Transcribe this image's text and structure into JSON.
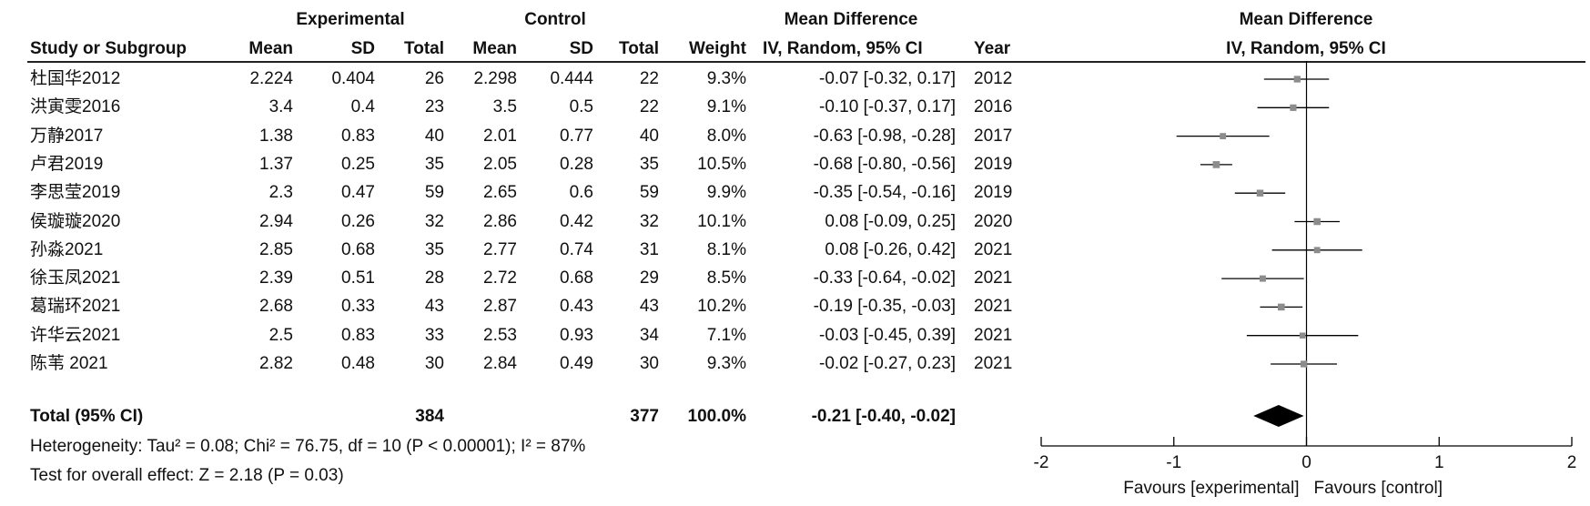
{
  "headers": {
    "group_experimental": "Experimental",
    "group_control": "Control",
    "group_md": "Mean Difference",
    "study": "Study or Subgroup",
    "mean": "Mean",
    "sd": "SD",
    "total": "Total",
    "weight": "Weight",
    "ci_method": "IV, Random, 95% CI",
    "year": "Year",
    "plot_title": "Mean Difference",
    "plot_subtitle": "IV, Random, 95% CI"
  },
  "studies": [
    {
      "name": "杜国华2012",
      "e_mean": "2.224",
      "e_sd": "0.404",
      "e_total": "26",
      "c_mean": "2.298",
      "c_sd": "0.444",
      "c_total": "22",
      "weight": "9.3%",
      "ci": "-0.07 [-0.32, 0.17]",
      "year": "2012"
    },
    {
      "name": "洪寅雯2016",
      "e_mean": "3.4",
      "e_sd": "0.4",
      "e_total": "23",
      "c_mean": "3.5",
      "c_sd": "0.5",
      "c_total": "22",
      "weight": "9.1%",
      "ci": "-0.10 [-0.37, 0.17]",
      "year": "2016"
    },
    {
      "name": "万静2017",
      "e_mean": "1.38",
      "e_sd": "0.83",
      "e_total": "40",
      "c_mean": "2.01",
      "c_sd": "0.77",
      "c_total": "40",
      "weight": "8.0%",
      "ci": "-0.63 [-0.98, -0.28]",
      "year": "2017"
    },
    {
      "name": "卢君2019",
      "e_mean": "1.37",
      "e_sd": "0.25",
      "e_total": "35",
      "c_mean": "2.05",
      "c_sd": "0.28",
      "c_total": "35",
      "weight": "10.5%",
      "ci": "-0.68 [-0.80, -0.56]",
      "year": "2019"
    },
    {
      "name": "李思莹2019",
      "e_mean": "2.3",
      "e_sd": "0.47",
      "e_total": "59",
      "c_mean": "2.65",
      "c_sd": "0.6",
      "c_total": "59",
      "weight": "9.9%",
      "ci": "-0.35 [-0.54, -0.16]",
      "year": "2019"
    },
    {
      "name": "侯璇璇2020",
      "e_mean": "2.94",
      "e_sd": "0.26",
      "e_total": "32",
      "c_mean": "2.86",
      "c_sd": "0.42",
      "c_total": "32",
      "weight": "10.1%",
      "ci": "0.08 [-0.09, 0.25]",
      "year": "2020"
    },
    {
      "name": "孙淼2021",
      "e_mean": "2.85",
      "e_sd": "0.68",
      "e_total": "35",
      "c_mean": "2.77",
      "c_sd": "0.74",
      "c_total": "31",
      "weight": "8.1%",
      "ci": "0.08 [-0.26, 0.42]",
      "year": "2021"
    },
    {
      "name": "徐玉凤2021",
      "e_mean": "2.39",
      "e_sd": "0.51",
      "e_total": "28",
      "c_mean": "2.72",
      "c_sd": "0.68",
      "c_total": "29",
      "weight": "8.5%",
      "ci": "-0.33 [-0.64, -0.02]",
      "year": "2021"
    },
    {
      "name": "葛瑞环2021",
      "e_mean": "2.68",
      "e_sd": "0.33",
      "e_total": "43",
      "c_mean": "2.87",
      "c_sd": "0.43",
      "c_total": "43",
      "weight": "10.2%",
      "ci": "-0.19 [-0.35, -0.03]",
      "year": "2021"
    },
    {
      "name": "许华云2021",
      "e_mean": "2.5",
      "e_sd": "0.83",
      "e_total": "33",
      "c_mean": "2.53",
      "c_sd": "0.93",
      "c_total": "34",
      "weight": "7.1%",
      "ci": "-0.03 [-0.45, 0.39]",
      "year": "2021"
    },
    {
      "name": "陈苇 2021",
      "e_mean": "2.82",
      "e_sd": "0.48",
      "e_total": "30",
      "c_mean": "2.84",
      "c_sd": "0.49",
      "c_total": "30",
      "weight": "9.3%",
      "ci": "-0.02 [-0.27, 0.23]",
      "year": "2021"
    }
  ],
  "total": {
    "label": "Total (95% CI)",
    "e_total": "384",
    "c_total": "377",
    "weight": "100.0%",
    "ci": "-0.21 [-0.40, -0.02]"
  },
  "footer": {
    "heterogeneity": "Heterogeneity: Tau² = 0.08; Chi² = 76.75, df = 10 (P < 0.00001); I² = 87%",
    "overall": "Test for overall effect: Z = 2.18 (P = 0.03)"
  },
  "chart_data": {
    "type": "forest",
    "title": "Mean Difference",
    "subtitle": "IV, Random, 95% CI",
    "x_range": [
      -2,
      2
    ],
    "ticks": [
      -2,
      -1,
      0,
      1,
      2
    ],
    "tick_labels": [
      "-2",
      "-1",
      "0",
      "1",
      "2"
    ],
    "xlabel_left": "Favours [experimental]",
    "xlabel_right": "Favours [control]",
    "series": [
      {
        "name": "杜国华2012",
        "estimate": -0.07,
        "lower": -0.32,
        "upper": 0.17
      },
      {
        "name": "洪寅雯2016",
        "estimate": -0.1,
        "lower": -0.37,
        "upper": 0.17
      },
      {
        "name": "万静2017",
        "estimate": -0.63,
        "lower": -0.98,
        "upper": -0.28
      },
      {
        "name": "卢君2019",
        "estimate": -0.68,
        "lower": -0.8,
        "upper": -0.56
      },
      {
        "name": "李思莹2019",
        "estimate": -0.35,
        "lower": -0.54,
        "upper": -0.16
      },
      {
        "name": "侯璇璇2020",
        "estimate": 0.08,
        "lower": -0.09,
        "upper": 0.25
      },
      {
        "name": "孙淼2021",
        "estimate": 0.08,
        "lower": -0.26,
        "upper": 0.42
      },
      {
        "name": "徐玉凤2021",
        "estimate": -0.33,
        "lower": -0.64,
        "upper": -0.02
      },
      {
        "name": "葛瑞环2021",
        "estimate": -0.19,
        "lower": -0.35,
        "upper": -0.03
      },
      {
        "name": "许华云2021",
        "estimate": -0.03,
        "lower": -0.45,
        "upper": 0.39
      },
      {
        "name": "陈苇 2021",
        "estimate": -0.02,
        "lower": -0.27,
        "upper": 0.23
      }
    ],
    "pooled": {
      "estimate": -0.21,
      "lower": -0.4,
      "upper": -0.02
    },
    "colors": {
      "marker": "#8c8c8c",
      "line": "#000000",
      "diamond": "#000000"
    }
  }
}
